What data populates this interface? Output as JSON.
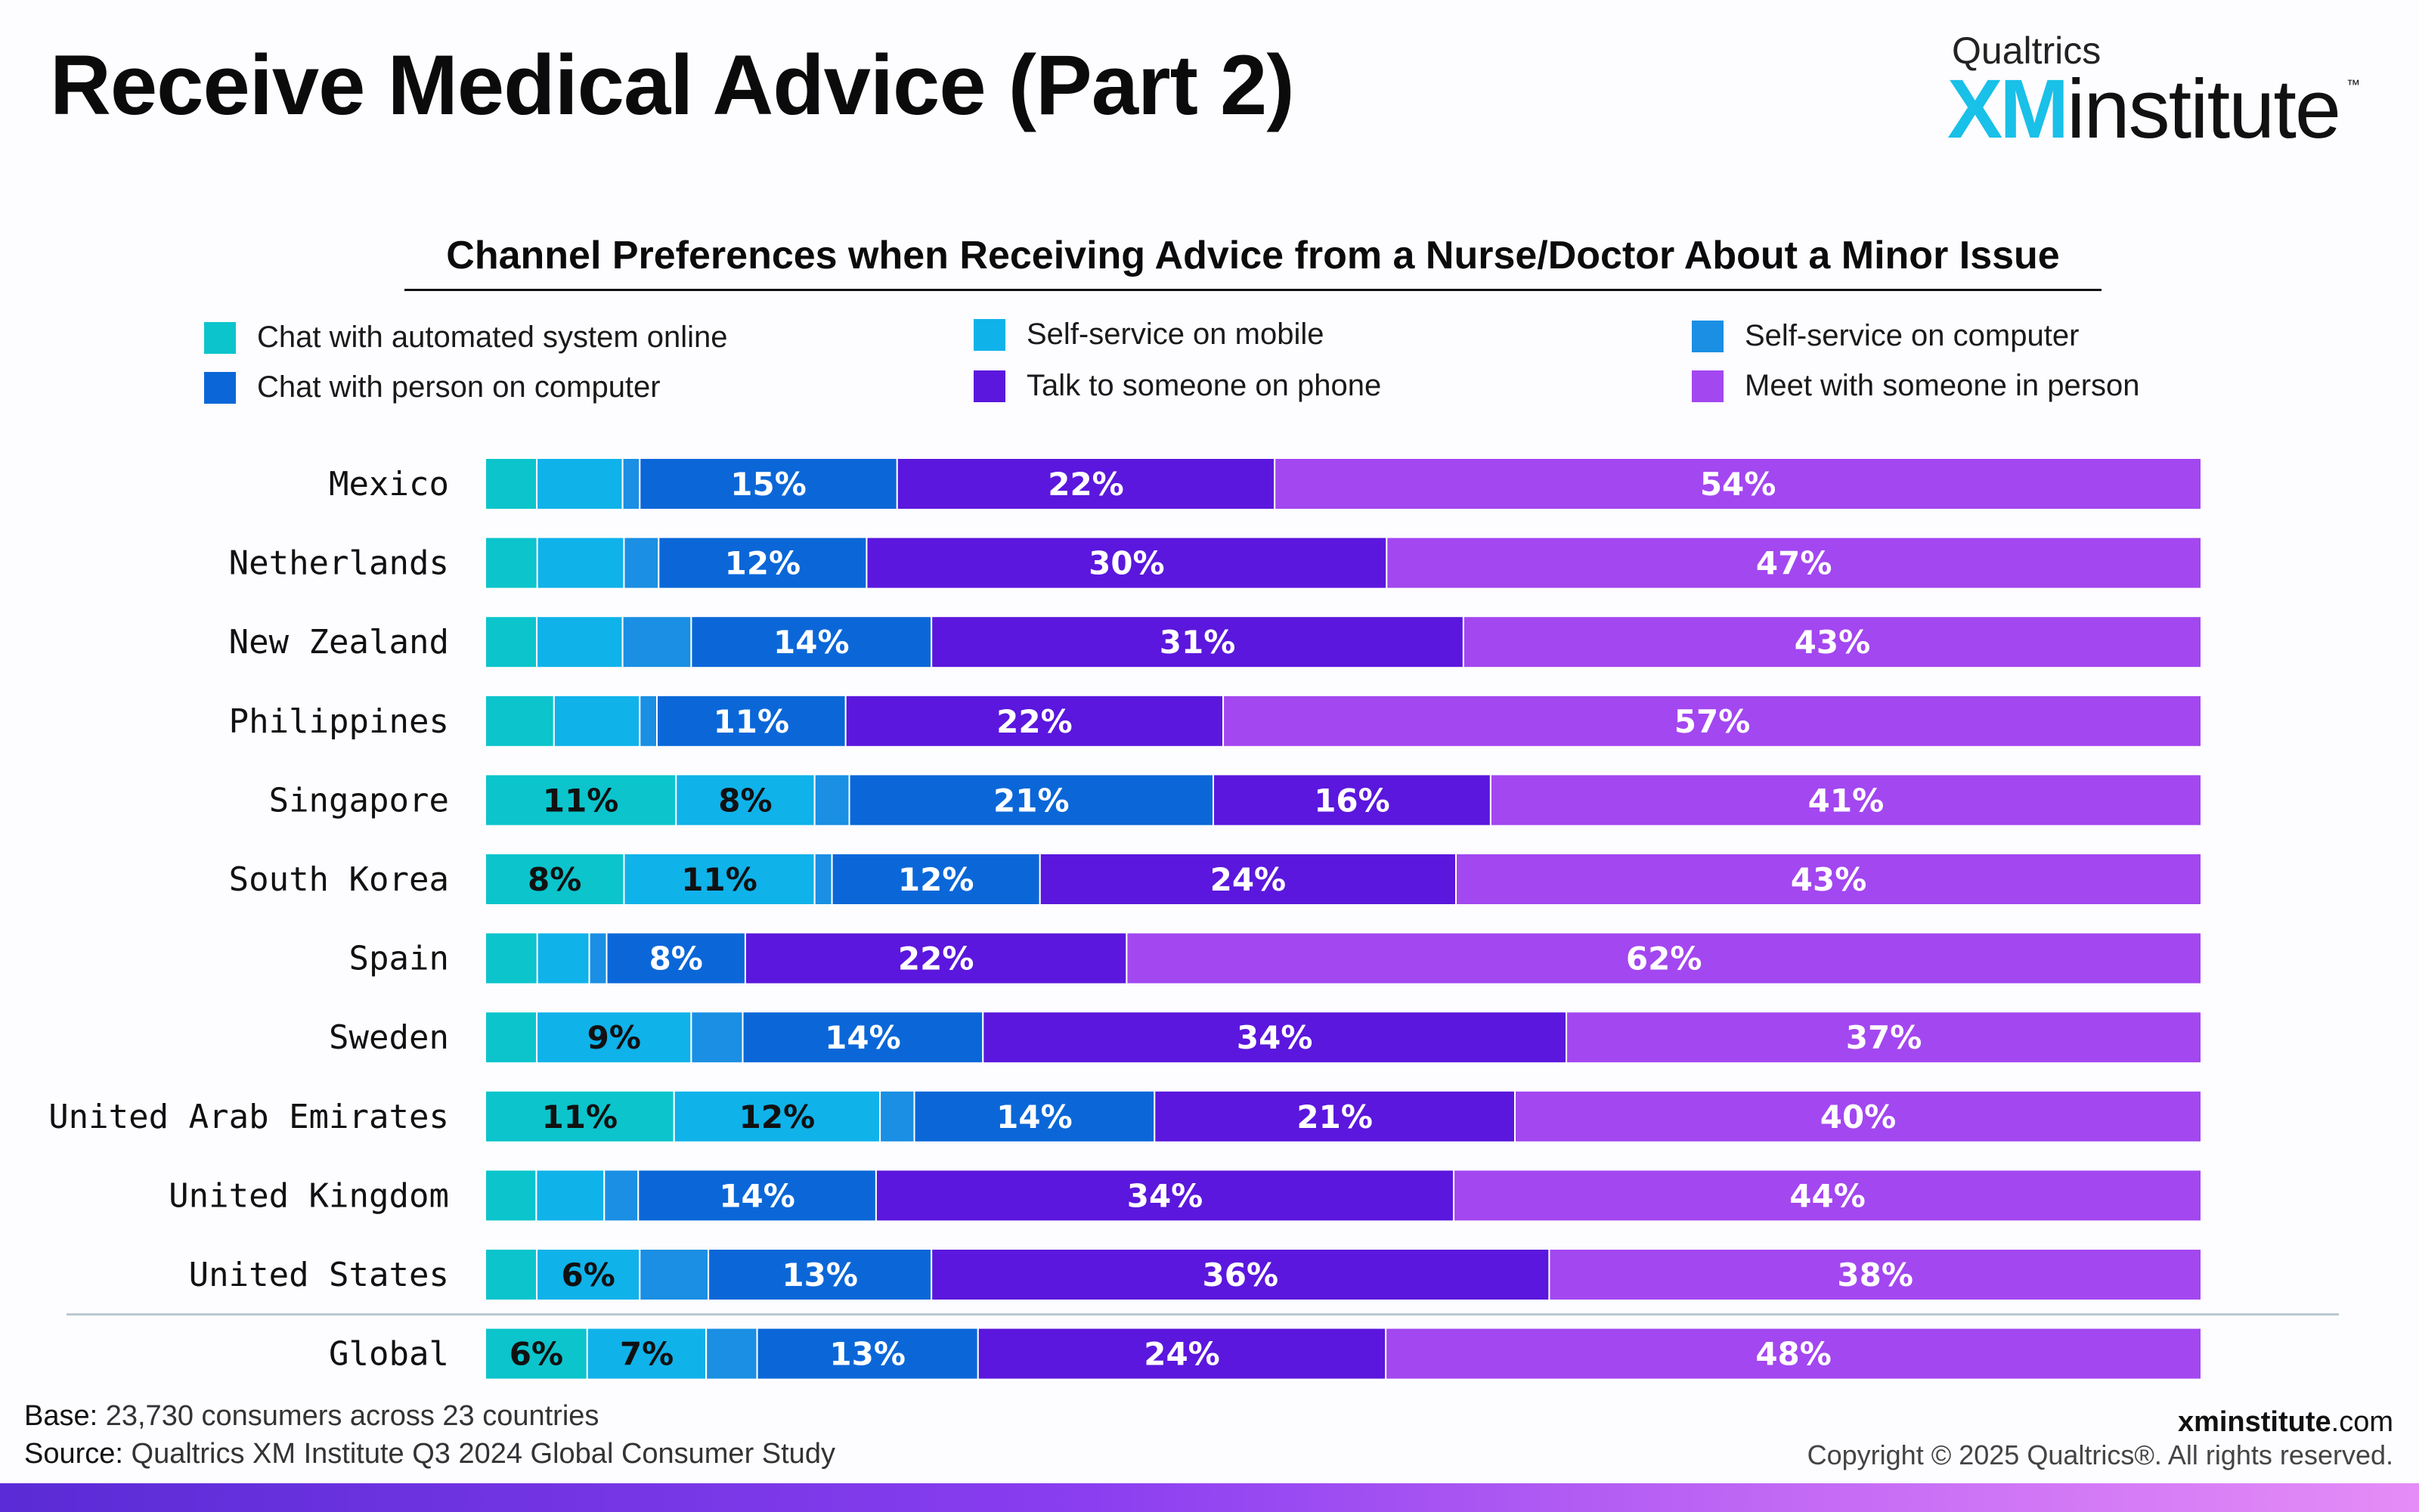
{
  "page": {
    "title": "Receive Medical Advice (Part 2)",
    "logo": {
      "brand": "Qualtrics",
      "mark": "XM",
      "word": "institute",
      "tm": "™"
    },
    "base_label": "Base:",
    "base_text": " 23,730 consumers across 23 countries",
    "source_label": "Source:",
    "source_text": " Qualtrics XM Institute Q3 2024 Global Consumer Study",
    "site_bold": "xminstitute",
    "site_suffix": ".com",
    "copyright": "Copyright © 2025 Qualtrics®. All rights reserved."
  },
  "chart_data": {
    "type": "bar",
    "orientation": "horizontal",
    "stacked": "100%",
    "title": "Channel Preferences when Receiving Advice from a Nurse/Doctor About a Minor Issue",
    "xlabel": "",
    "ylabel": "",
    "legend_position": "top",
    "categories": [
      "Mexico",
      "Netherlands",
      "New Zealand",
      "Philippines",
      "Singapore",
      "South Korea",
      "Spain",
      "Sweden",
      "United Arab Emirates",
      "United Kingdom",
      "United States",
      "Global"
    ],
    "series": [
      {
        "name": "Chat with automated system online",
        "color": "#0cc4cc",
        "values": [
          3,
          3,
          3,
          4,
          11,
          8,
          3,
          3,
          11,
          3,
          3,
          6
        ]
      },
      {
        "name": "Self-service on mobile",
        "color": "#10b2ea",
        "values": [
          5,
          5,
          5,
          5,
          8,
          11,
          3,
          9,
          12,
          4,
          6,
          7
        ]
      },
      {
        "name": "Self-service on computer",
        "color": "#1a8fe3",
        "values": [
          1,
          2,
          4,
          1,
          2,
          1,
          1,
          3,
          2,
          2,
          4,
          3
        ]
      },
      {
        "name": "Chat with person on computer",
        "color": "#0b67d8",
        "values": [
          15,
          12,
          14,
          11,
          21,
          12,
          8,
          14,
          14,
          14,
          13,
          13
        ]
      },
      {
        "name": "Talk to someone on phone",
        "color": "#5b17dd",
        "values": [
          22,
          30,
          31,
          22,
          16,
          24,
          22,
          34,
          21,
          34,
          36,
          24
        ]
      },
      {
        "name": "Meet with someone in person",
        "color": "#a347f0",
        "values": [
          54,
          47,
          43,
          57,
          41,
          43,
          62,
          37,
          40,
          44,
          38,
          48
        ]
      }
    ],
    "labels": [
      [
        "",
        "",
        "",
        "15%",
        "22%",
        "54%"
      ],
      [
        "",
        "",
        "",
        "12%",
        "30%",
        "47%"
      ],
      [
        "",
        "",
        "",
        "14%",
        "31%",
        "43%"
      ],
      [
        "",
        "",
        "",
        "11%",
        "22%",
        "57%"
      ],
      [
        "11%",
        "8%",
        "",
        "21%",
        "16%",
        "41%"
      ],
      [
        "8%",
        "11%",
        "",
        "12%",
        "24%",
        "43%"
      ],
      [
        "",
        "",
        "",
        "8%",
        "22%",
        "62%"
      ],
      [
        "",
        "9%",
        "",
        "14%",
        "34%",
        "37%"
      ],
      [
        "11%",
        "12%",
        "",
        "14%",
        "21%",
        "40%"
      ],
      [
        "",
        "",
        "",
        "14%",
        "34%",
        "44%"
      ],
      [
        "",
        "6%",
        "",
        "13%",
        "36%",
        "38%"
      ],
      [
        "6%",
        "7%",
        "",
        "13%",
        "24%",
        "48%"
      ]
    ],
    "label_colors": [
      "#111111",
      "#111111",
      "#111111",
      "#ffffff",
      "#ffffff",
      "#ffffff"
    ]
  }
}
